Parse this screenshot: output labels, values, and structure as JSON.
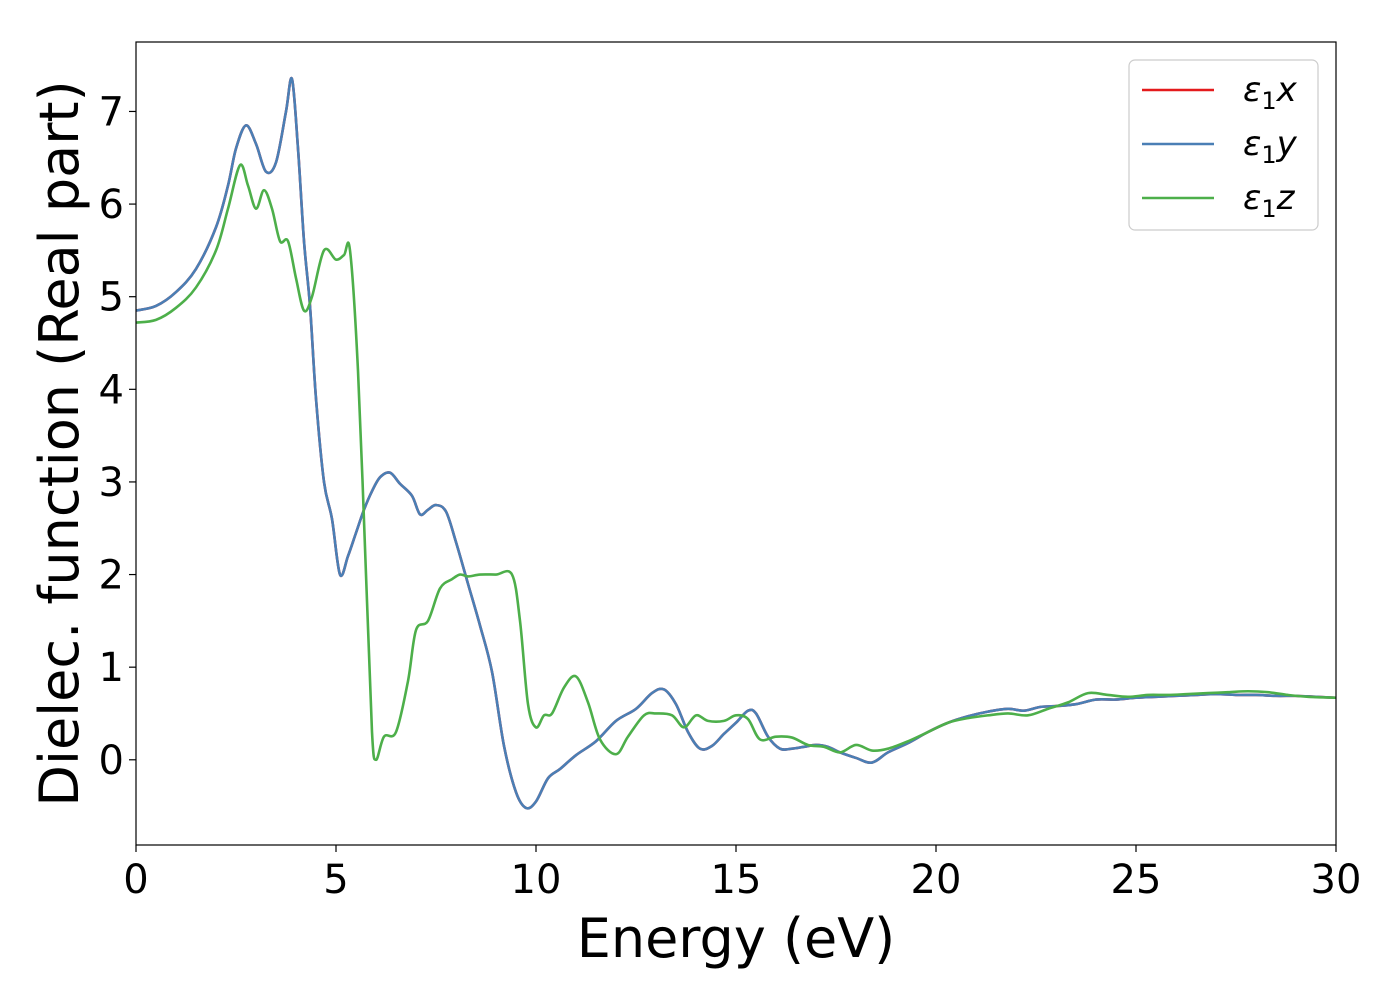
{
  "chart_data": {
    "type": "line",
    "title": "",
    "xlabel": "Energy (eV)",
    "ylabel": "Dielec. function (Real part)",
    "xlim": [
      0,
      30
    ],
    "ylim": [
      -0.92,
      7.75
    ],
    "xticks": [
      0,
      5,
      10,
      15,
      20,
      25,
      30
    ],
    "yticks": [
      0,
      1,
      2,
      3,
      4,
      5,
      6,
      7
    ],
    "grid": false,
    "legend_position": "top-right",
    "series": [
      {
        "name": "ε₁x",
        "legend": {
          "base": "ε",
          "sub": "1",
          "var": "x"
        },
        "color": "#e41a1c",
        "x": [
          0,
          0.5,
          1,
          1.5,
          2,
          2.3,
          2.5,
          2.75,
          3,
          3.25,
          3.5,
          3.75,
          3.9,
          4.05,
          4.2,
          4.35,
          4.5,
          4.7,
          4.9,
          5.1,
          5.3,
          5.5,
          5.7,
          5.9,
          6.1,
          6.35,
          6.6,
          6.9,
          7.1,
          7.3,
          7.5,
          7.75,
          8.0,
          8.3,
          8.6,
          8.9,
          9.2,
          9.5,
          9.75,
          10.0,
          10.3,
          10.6,
          11.0,
          11.5,
          12.0,
          12.5,
          12.9,
          13.2,
          13.5,
          13.8,
          14.1,
          14.4,
          14.7,
          15.0,
          15.3,
          15.5,
          15.8,
          16.1,
          16.4,
          16.7,
          17.0,
          17.3,
          17.6,
          18.0,
          18.4,
          18.8,
          19.3,
          19.8,
          20.3,
          20.8,
          21.3,
          21.8,
          22.2,
          22.6,
          23.0,
          23.5,
          24.0,
          24.5,
          25.0,
          25.5,
          26.0,
          26.5,
          27.0,
          27.5,
          28.0,
          28.5,
          29.0,
          29.5,
          30.0
        ],
        "y": [
          4.85,
          4.9,
          5.05,
          5.3,
          5.75,
          6.2,
          6.6,
          6.85,
          6.65,
          6.35,
          6.45,
          7.0,
          7.35,
          6.6,
          5.6,
          4.9,
          3.9,
          3.0,
          2.6,
          2.0,
          2.2,
          2.45,
          2.7,
          2.9,
          3.05,
          3.1,
          2.98,
          2.85,
          2.65,
          2.7,
          2.75,
          2.68,
          2.35,
          1.9,
          1.45,
          0.95,
          0.15,
          -0.35,
          -0.52,
          -0.45,
          -0.2,
          -0.1,
          0.05,
          0.2,
          0.42,
          0.55,
          0.72,
          0.76,
          0.6,
          0.3,
          0.12,
          0.15,
          0.28,
          0.4,
          0.53,
          0.5,
          0.25,
          0.12,
          0.12,
          0.14,
          0.16,
          0.14,
          0.08,
          0.02,
          -0.03,
          0.08,
          0.18,
          0.3,
          0.4,
          0.47,
          0.52,
          0.55,
          0.53,
          0.57,
          0.58,
          0.6,
          0.65,
          0.65,
          0.67,
          0.68,
          0.69,
          0.7,
          0.71,
          0.7,
          0.7,
          0.69,
          0.69,
          0.68,
          0.67
        ]
      },
      {
        "name": "ε₁y",
        "legend": {
          "base": "ε",
          "sub": "1",
          "var": "y"
        },
        "color": "#4a7fb5",
        "x": [
          0,
          0.5,
          1,
          1.5,
          2,
          2.3,
          2.5,
          2.75,
          3,
          3.25,
          3.5,
          3.75,
          3.9,
          4.05,
          4.2,
          4.35,
          4.5,
          4.7,
          4.9,
          5.1,
          5.3,
          5.5,
          5.7,
          5.9,
          6.1,
          6.35,
          6.6,
          6.9,
          7.1,
          7.3,
          7.5,
          7.75,
          8.0,
          8.3,
          8.6,
          8.9,
          9.2,
          9.5,
          9.75,
          10.0,
          10.3,
          10.6,
          11.0,
          11.5,
          12.0,
          12.5,
          12.9,
          13.2,
          13.5,
          13.8,
          14.1,
          14.4,
          14.7,
          15.0,
          15.3,
          15.5,
          15.8,
          16.1,
          16.4,
          16.7,
          17.0,
          17.3,
          17.6,
          18.0,
          18.4,
          18.8,
          19.3,
          19.8,
          20.3,
          20.8,
          21.3,
          21.8,
          22.2,
          22.6,
          23.0,
          23.5,
          24.0,
          24.5,
          25.0,
          25.5,
          26.0,
          26.5,
          27.0,
          27.5,
          28.0,
          28.5,
          29.0,
          29.5,
          30.0
        ],
        "y": [
          4.85,
          4.9,
          5.05,
          5.3,
          5.75,
          6.2,
          6.6,
          6.85,
          6.65,
          6.35,
          6.45,
          7.0,
          7.35,
          6.6,
          5.6,
          4.9,
          3.9,
          3.0,
          2.6,
          2.0,
          2.2,
          2.45,
          2.7,
          2.9,
          3.05,
          3.1,
          2.98,
          2.85,
          2.65,
          2.7,
          2.75,
          2.68,
          2.35,
          1.9,
          1.45,
          0.95,
          0.15,
          -0.35,
          -0.52,
          -0.45,
          -0.2,
          -0.1,
          0.05,
          0.2,
          0.42,
          0.55,
          0.72,
          0.76,
          0.6,
          0.3,
          0.12,
          0.15,
          0.28,
          0.4,
          0.53,
          0.5,
          0.25,
          0.12,
          0.12,
          0.14,
          0.16,
          0.14,
          0.08,
          0.02,
          -0.03,
          0.08,
          0.18,
          0.3,
          0.4,
          0.47,
          0.52,
          0.55,
          0.53,
          0.57,
          0.58,
          0.6,
          0.65,
          0.65,
          0.67,
          0.68,
          0.69,
          0.7,
          0.71,
          0.7,
          0.7,
          0.69,
          0.69,
          0.68,
          0.67
        ]
      },
      {
        "name": "ε₁z",
        "legend": {
          "base": "ε",
          "sub": "1",
          "var": "z"
        },
        "color": "#4daf4a",
        "x": [
          0,
          0.5,
          1,
          1.5,
          2,
          2.3,
          2.6,
          2.8,
          3.0,
          3.2,
          3.4,
          3.6,
          3.8,
          4.0,
          4.2,
          4.4,
          4.7,
          5.0,
          5.2,
          5.35,
          5.55,
          5.75,
          5.9,
          6.0,
          6.2,
          6.5,
          6.8,
          7.0,
          7.3,
          7.6,
          7.9,
          8.1,
          8.3,
          8.6,
          9.0,
          9.4,
          9.6,
          9.8,
          10.0,
          10.2,
          10.4,
          10.7,
          11.0,
          11.3,
          11.6,
          12.0,
          12.3,
          12.7,
          13.0,
          13.4,
          13.7,
          14.0,
          14.3,
          14.7,
          15.0,
          15.3,
          15.6,
          16.0,
          16.4,
          16.8,
          17.2,
          17.6,
          18.0,
          18.4,
          18.8,
          19.3,
          19.8,
          20.3,
          20.8,
          21.3,
          21.8,
          22.3,
          22.8,
          23.3,
          23.8,
          24.3,
          24.8,
          25.3,
          25.8,
          26.3,
          26.8,
          27.3,
          27.8,
          28.3,
          28.8,
          29.3,
          30.0
        ],
        "y": [
          4.72,
          4.75,
          4.88,
          5.1,
          5.5,
          5.95,
          6.42,
          6.2,
          5.95,
          6.15,
          5.95,
          5.6,
          5.6,
          5.2,
          4.85,
          5.0,
          5.5,
          5.4,
          5.45,
          5.5,
          4.2,
          2.0,
          0.3,
          0.0,
          0.25,
          0.3,
          0.85,
          1.4,
          1.5,
          1.85,
          1.95,
          2.0,
          1.98,
          2.0,
          2.0,
          2.0,
          1.5,
          0.6,
          0.35,
          0.48,
          0.5,
          0.78,
          0.9,
          0.62,
          0.22,
          0.06,
          0.25,
          0.48,
          0.5,
          0.48,
          0.35,
          0.48,
          0.42,
          0.42,
          0.48,
          0.44,
          0.22,
          0.25,
          0.24,
          0.16,
          0.14,
          0.08,
          0.16,
          0.1,
          0.12,
          0.2,
          0.3,
          0.4,
          0.45,
          0.48,
          0.5,
          0.48,
          0.55,
          0.62,
          0.72,
          0.7,
          0.68,
          0.7,
          0.7,
          0.71,
          0.72,
          0.73,
          0.74,
          0.73,
          0.7,
          0.68,
          0.67
        ]
      }
    ]
  }
}
